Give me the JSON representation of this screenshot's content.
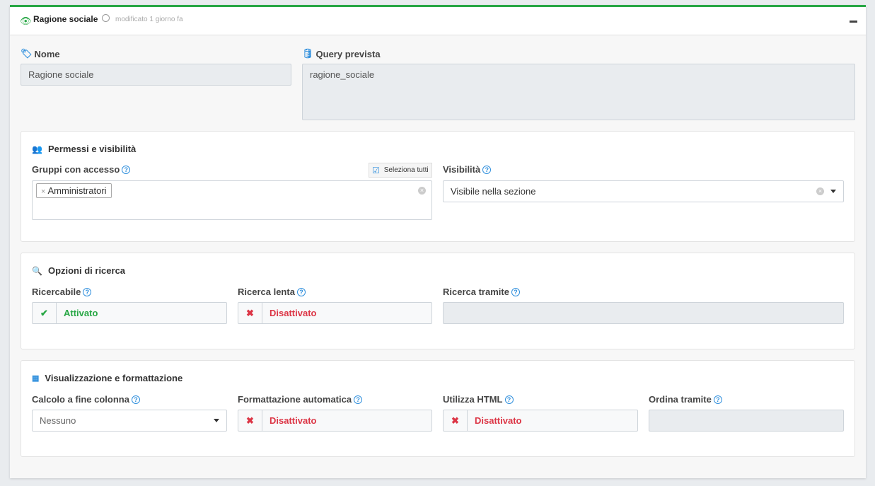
{
  "header": {
    "title": "Ragione sociale",
    "modified": "modificato 1 giorno fa"
  },
  "nome": {
    "label": "Nome",
    "value": "Ragione sociale"
  },
  "query": {
    "label": "Query prevista",
    "value": "ragione_sociale"
  },
  "permessi": {
    "title": "Permessi e visibilità",
    "gruppi_label": "Gruppi con accesso",
    "select_all": "Seleziona tutti",
    "tags": [
      "Amministratori"
    ],
    "visibilita_label": "Visibilità",
    "visibilita_value": "Visibile nella sezione"
  },
  "ricerca": {
    "title": "Opzioni di ricerca",
    "ricercabile_label": "Ricercabile",
    "ricercabile_value": "Attivato",
    "lenta_label": "Ricerca lenta",
    "lenta_value": "Disattivato",
    "tramite_label": "Ricerca tramite",
    "tramite_value": ""
  },
  "visual": {
    "title": "Visualizzazione e formattazione",
    "calcolo_label": "Calcolo a fine colonna",
    "calcolo_value": "Nessuno",
    "formattazione_label": "Formattazione automatica",
    "formattazione_value": "Disattivato",
    "html_label": "Utilizza HTML",
    "html_value": "Disattivato",
    "ordina_label": "Ordina tramite",
    "ordina_value": ""
  },
  "colors": {
    "accent": "#28a745",
    "on": "#28a745",
    "off": "#dc3545",
    "icon": "#2f8fdd"
  }
}
